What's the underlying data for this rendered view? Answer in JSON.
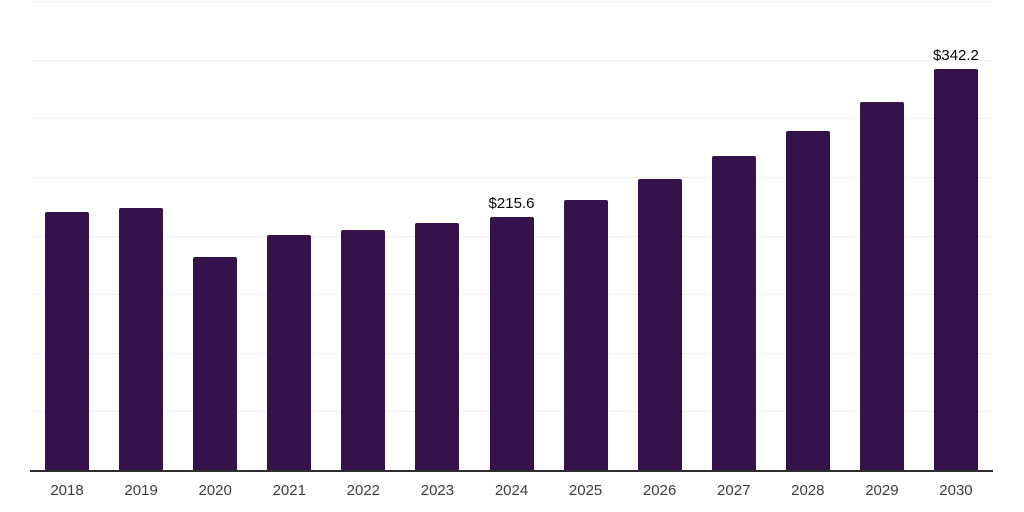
{
  "chart_data": {
    "type": "bar",
    "title": "",
    "categories": [
      "2018",
      "2019",
      "2020",
      "2021",
      "2022",
      "2023",
      "2024",
      "2025",
      "2026",
      "2027",
      "2028",
      "2029",
      "2030"
    ],
    "values": [
      219.8,
      223.1,
      181.4,
      200.5,
      205.0,
      210.3,
      215.6,
      230.2,
      248.1,
      268.0,
      289.2,
      314.1,
      342.2
    ],
    "data_labels": {
      "2024": "$215.6",
      "2030": "$342.2"
    },
    "value_prefix": "$",
    "ylim": [
      0,
      400
    ],
    "grid_step": 50,
    "grid": true,
    "legend_position": "none",
    "xlabel": "",
    "ylabel": "",
    "bar_color": "#36124b",
    "gridline_color": "#f1f1f1",
    "axis_line_color": "#2e2e2e",
    "tick_label_color": "#3d3d3d",
    "data_label_color": "#070707"
  }
}
